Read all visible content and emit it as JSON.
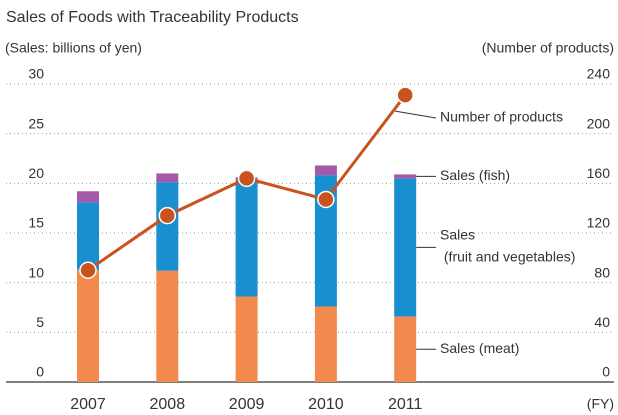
{
  "chart_data": {
    "type": "bar-line",
    "title": "Sales  of Foods with Traceability Products",
    "ylabel": "(Sales: billions of yen)",
    "y2label": "(Number of products)",
    "xlabel": "(FY)",
    "categories": [
      "2007",
      "2008",
      "2009",
      "2010",
      "2011"
    ],
    "series": [
      {
        "name": "Sales (meat)",
        "color": "#f28a4e",
        "values": [
          11.3,
          11.2,
          8.6,
          7.6,
          6.6
        ]
      },
      {
        "name": "Sales (fruit and vegetables)",
        "color": "#1a8fd0",
        "values": [
          6.8,
          8.9,
          11.7,
          13.2,
          13.9
        ]
      },
      {
        "name": "Sales (fish)",
        "color": "#a35aa8",
        "values": [
          1.1,
          0.9,
          0.3,
          1.0,
          0.4
        ]
      },
      {
        "name": "Number of products",
        "color": "#c8531e",
        "axis": "y2",
        "values": [
          90,
          134,
          164,
          147,
          231
        ]
      }
    ],
    "ylim": [
      0,
      30
    ],
    "yticks": [
      0,
      5,
      10,
      15,
      20,
      25,
      30
    ],
    "y2lim": [
      0,
      240
    ],
    "y2ticks": [
      0,
      40,
      80,
      120,
      160,
      200,
      240
    ],
    "grid": true
  }
}
